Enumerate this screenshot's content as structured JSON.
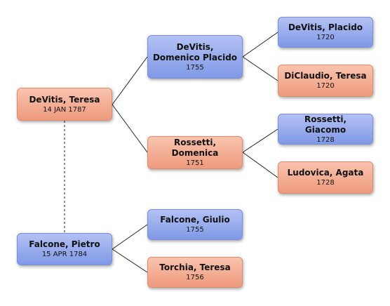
{
  "nodes": [
    {
      "name": "DeVitis, Teresa",
      "date": "14 JAN 1787"
    },
    {
      "name": "Falcone, Pietro",
      "date": "15 APR 1784"
    },
    {
      "name": "DeVitis, Domenico Placido",
      "date": "1755"
    },
    {
      "name": "Rossetti, Domenica",
      "date": "1751"
    },
    {
      "name": "Falcone, Giulio",
      "date": "1755"
    },
    {
      "name": "Torchia, Teresa",
      "date": "1756"
    },
    {
      "name": "DeVitis, Placido",
      "date": "1720"
    },
    {
      "name": "DiClaudio, Teresa",
      "date": "1720"
    },
    {
      "name": "Rossetti, Giacomo",
      "date": "1728"
    },
    {
      "name": "Ludovica, Agata",
      "date": "1728"
    }
  ]
}
